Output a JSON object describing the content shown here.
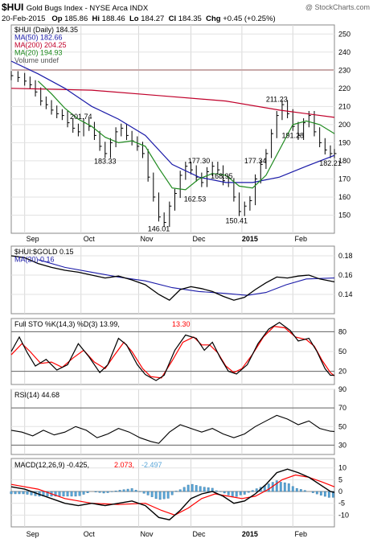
{
  "header": {
    "symbol": "$HUI",
    "name": "Gold Bugs Index - NYSE Arca INDX",
    "watermark": "@ StockCharts.com",
    "date": "20-Feb-2015",
    "op_label": "Op",
    "op": "185.86",
    "hi_label": "Hi",
    "hi": "188.46",
    "lo_label": "Lo",
    "lo": "184.27",
    "cl_label": "Cl",
    "cl": "184.35",
    "chg_label": "Chg",
    "chg": "+0.45 (+0.25%)"
  },
  "months": [
    "Sep",
    "Oct",
    "Nov",
    "Dec",
    "2015",
    "Feb"
  ],
  "colors": {
    "price": "#000000",
    "ma50": "#1a1aa8",
    "ma200": "#c0002a",
    "ma20": "#1f8a1f",
    "sto_k": "#000000",
    "sto_d": "#ff0000",
    "macd": "#000000",
    "signal": "#ff0000",
    "hist": "#5aa6d8",
    "positive": "#2a9a2a",
    "vol": "#c9a9a9"
  },
  "chart_data": [
    {
      "type": "line",
      "legend": [
        "$HUI (Daily) 184.35",
        "MA(50) 182.66",
        "MA(200) 204.25",
        "MA(20) 194.93",
        "Volume undef"
      ],
      "ylim": [
        140,
        255
      ],
      "yticks": [
        "150",
        "160",
        "170",
        "180",
        "190",
        "200",
        "210",
        "220",
        "230",
        "240",
        "250"
      ],
      "annotations": [
        {
          "text": "201.74",
          "x": 52,
          "y": 201.74
        },
        {
          "text": "183.33",
          "x": 70,
          "y": 183.33
        },
        {
          "text": "146.01",
          "x": 110,
          "y": 146.01
        },
        {
          "text": "177.30",
          "x": 140,
          "y": 177.3
        },
        {
          "text": "162.53",
          "x": 137,
          "y": 162.53
        },
        {
          "text": "168.95",
          "x": 157,
          "y": 168.95
        },
        {
          "text": "150.41",
          "x": 168,
          "y": 150.41
        },
        {
          "text": "177.34",
          "x": 182,
          "y": 177.34
        },
        {
          "text": "211.23",
          "x": 198,
          "y": 211.23
        },
        {
          "text": "191.28",
          "x": 210,
          "y": 191.28
        },
        {
          "text": "182.21",
          "x": 238,
          "y": 182.21
        }
      ],
      "price": [
        [
          0,
          227
        ],
        [
          5,
          226
        ],
        [
          10,
          224
        ],
        [
          14,
          222
        ],
        [
          18,
          218
        ],
        [
          22,
          213
        ],
        [
          26,
          211
        ],
        [
          30,
          208
        ],
        [
          34,
          206
        ],
        [
          38,
          205
        ],
        [
          42,
          201
        ],
        [
          46,
          198
        ],
        [
          50,
          196
        ],
        [
          54,
          201
        ],
        [
          58,
          199
        ],
        [
          62,
          194
        ],
        [
          66,
          188
        ],
        [
          70,
          184
        ],
        [
          74,
          190
        ],
        [
          78,
          196
        ],
        [
          82,
          198
        ],
        [
          86,
          194
        ],
        [
          90,
          191
        ],
        [
          94,
          188
        ],
        [
          98,
          184
        ],
        [
          102,
          171
        ],
        [
          106,
          160
        ],
        [
          110,
          149
        ],
        [
          114,
          146
        ],
        [
          118,
          155
        ],
        [
          122,
          162
        ],
        [
          126,
          172
        ],
        [
          130,
          177
        ],
        [
          134,
          175
        ],
        [
          138,
          171
        ],
        [
          142,
          168
        ],
        [
          146,
          174
        ],
        [
          150,
          177
        ],
        [
          154,
          175
        ],
        [
          158,
          169
        ],
        [
          162,
          168
        ],
        [
          166,
          160
        ],
        [
          170,
          152
        ],
        [
          174,
          155
        ],
        [
          178,
          158
        ],
        [
          182,
          170
        ],
        [
          186,
          178
        ],
        [
          190,
          184
        ],
        [
          194,
          195
        ],
        [
          198,
          205
        ],
        [
          202,
          211
        ],
        [
          206,
          206
        ],
        [
          210,
          199
        ],
        [
          214,
          194
        ],
        [
          218,
          201
        ],
        [
          222,
          205
        ],
        [
          226,
          196
        ],
        [
          230,
          190
        ],
        [
          234,
          186
        ],
        [
          238,
          184
        ],
        [
          241,
          184
        ]
      ],
      "ma50": [
        [
          0,
          235
        ],
        [
          20,
          228
        ],
        [
          40,
          220
        ],
        [
          60,
          210
        ],
        [
          80,
          203
        ],
        [
          100,
          194
        ],
        [
          120,
          178
        ],
        [
          140,
          171
        ],
        [
          160,
          168
        ],
        [
          180,
          168
        ],
        [
          200,
          171
        ],
        [
          220,
          177
        ],
        [
          241,
          183
        ]
      ],
      "ma200": [
        [
          0,
          220
        ],
        [
          60,
          219
        ],
        [
          110,
          216
        ],
        [
          160,
          213
        ],
        [
          200,
          208
        ],
        [
          241,
          204
        ]
      ],
      "ma20": [
        [
          20,
          224
        ],
        [
          30,
          217
        ],
        [
          40,
          209
        ],
        [
          50,
          203
        ],
        [
          60,
          199
        ],
        [
          70,
          193
        ],
        [
          80,
          190
        ],
        [
          90,
          191
        ],
        [
          100,
          188
        ],
        [
          110,
          176
        ],
        [
          120,
          165
        ],
        [
          130,
          164
        ],
        [
          140,
          170
        ],
        [
          150,
          173
        ],
        [
          160,
          172
        ],
        [
          170,
          166
        ],
        [
          180,
          165
        ],
        [
          190,
          172
        ],
        [
          200,
          186
        ],
        [
          210,
          200
        ],
        [
          220,
          202
        ],
        [
          230,
          200
        ],
        [
          241,
          195
        ]
      ]
    },
    {
      "type": "line",
      "legend": [
        "$HUI:$GOLD 0.15",
        "MA(20) 0.16"
      ],
      "ylim": [
        0.12,
        0.19
      ],
      "yticks": [
        "0.14",
        "0.16",
        "0.18"
      ],
      "ratio": [
        [
          0,
          0.18
        ],
        [
          10,
          0.178
        ],
        [
          20,
          0.172
        ],
        [
          30,
          0.168
        ],
        [
          40,
          0.165
        ],
        [
          50,
          0.163
        ],
        [
          60,
          0.16
        ],
        [
          70,
          0.157
        ],
        [
          80,
          0.159
        ],
        [
          90,
          0.155
        ],
        [
          100,
          0.15
        ],
        [
          110,
          0.14
        ],
        [
          118,
          0.134
        ],
        [
          126,
          0.145
        ],
        [
          134,
          0.148
        ],
        [
          142,
          0.146
        ],
        [
          150,
          0.143
        ],
        [
          158,
          0.138
        ],
        [
          166,
          0.134
        ],
        [
          174,
          0.137
        ],
        [
          182,
          0.145
        ],
        [
          190,
          0.152
        ],
        [
          198,
          0.158
        ],
        [
          206,
          0.157
        ],
        [
          214,
          0.159
        ],
        [
          222,
          0.16
        ],
        [
          230,
          0.156
        ],
        [
          241,
          0.153
        ]
      ],
      "ma20": [
        [
          20,
          0.176
        ],
        [
          40,
          0.168
        ],
        [
          60,
          0.163
        ],
        [
          80,
          0.158
        ],
        [
          100,
          0.154
        ],
        [
          120,
          0.147
        ],
        [
          140,
          0.143
        ],
        [
          160,
          0.141
        ],
        [
          176,
          0.139
        ],
        [
          190,
          0.142
        ],
        [
          205,
          0.15
        ],
        [
          220,
          0.156
        ],
        [
          241,
          0.157
        ]
      ]
    },
    {
      "type": "line",
      "legend": [
        "Full STO %K(14,3) %D(3) 13.99,",
        "13.30"
      ],
      "ylim": [
        0,
        100
      ],
      "yticks": [
        "20",
        "50",
        "80"
      ],
      "k": [
        [
          0,
          50
        ],
        [
          6,
          72
        ],
        [
          12,
          48
        ],
        [
          18,
          28
        ],
        [
          26,
          38
        ],
        [
          34,
          22
        ],
        [
          42,
          30
        ],
        [
          50,
          62
        ],
        [
          58,
          42
        ],
        [
          66,
          18
        ],
        [
          72,
          30
        ],
        [
          80,
          70
        ],
        [
          86,
          60
        ],
        [
          94,
          30
        ],
        [
          100,
          15
        ],
        [
          108,
          6
        ],
        [
          114,
          14
        ],
        [
          122,
          52
        ],
        [
          130,
          75
        ],
        [
          138,
          70
        ],
        [
          144,
          52
        ],
        [
          150,
          64
        ],
        [
          156,
          40
        ],
        [
          162,
          20
        ],
        [
          168,
          16
        ],
        [
          176,
          30
        ],
        [
          184,
          62
        ],
        [
          192,
          84
        ],
        [
          200,
          94
        ],
        [
          208,
          82
        ],
        [
          214,
          66
        ],
        [
          222,
          70
        ],
        [
          228,
          50
        ],
        [
          234,
          24
        ],
        [
          238,
          14
        ],
        [
          241,
          14
        ]
      ],
      "d": [
        [
          0,
          45
        ],
        [
          8,
          62
        ],
        [
          14,
          50
        ],
        [
          22,
          32
        ],
        [
          30,
          34
        ],
        [
          38,
          26
        ],
        [
          46,
          40
        ],
        [
          54,
          52
        ],
        [
          62,
          34
        ],
        [
          70,
          24
        ],
        [
          76,
          42
        ],
        [
          84,
          64
        ],
        [
          90,
          50
        ],
        [
          98,
          24
        ],
        [
          104,
          12
        ],
        [
          112,
          10
        ],
        [
          120,
          36
        ],
        [
          128,
          64
        ],
        [
          136,
          72
        ],
        [
          142,
          60
        ],
        [
          148,
          60
        ],
        [
          154,
          48
        ],
        [
          160,
          28
        ],
        [
          166,
          18
        ],
        [
          172,
          24
        ],
        [
          180,
          46
        ],
        [
          188,
          72
        ],
        [
          196,
          88
        ],
        [
          204,
          86
        ],
        [
          212,
          72
        ],
        [
          220,
          68
        ],
        [
          226,
          58
        ],
        [
          232,
          36
        ],
        [
          238,
          18
        ],
        [
          241,
          13
        ]
      ]
    },
    {
      "type": "line",
      "legend": [
        "RSI(14) 44.68"
      ],
      "ylim": [
        20,
        90
      ],
      "yticks": [
        "30",
        "50",
        "70",
        "90"
      ],
      "rsi": [
        [
          0,
          46
        ],
        [
          8,
          44
        ],
        [
          16,
          40
        ],
        [
          24,
          46
        ],
        [
          32,
          41
        ],
        [
          40,
          44
        ],
        [
          48,
          50
        ],
        [
          56,
          46
        ],
        [
          64,
          38
        ],
        [
          72,
          42
        ],
        [
          80,
          48
        ],
        [
          88,
          44
        ],
        [
          96,
          38
        ],
        [
          104,
          34
        ],
        [
          110,
          32
        ],
        [
          118,
          44
        ],
        [
          126,
          52
        ],
        [
          134,
          48
        ],
        [
          142,
          44
        ],
        [
          150,
          48
        ],
        [
          158,
          42
        ],
        [
          166,
          38
        ],
        [
          174,
          42
        ],
        [
          182,
          50
        ],
        [
          190,
          56
        ],
        [
          198,
          62
        ],
        [
          206,
          58
        ],
        [
          214,
          52
        ],
        [
          222,
          56
        ],
        [
          230,
          48
        ],
        [
          238,
          45
        ],
        [
          241,
          44.7
        ]
      ]
    },
    {
      "type": "line",
      "legend": [
        "MACD(12,26,9) -0.425,",
        "2.073,",
        "-2.497"
      ],
      "ylim": [
        -15,
        14
      ],
      "yticks": [
        "-10",
        "-5",
        "0",
        "5",
        "10"
      ],
      "macd": [
        [
          0,
          2
        ],
        [
          10,
          1
        ],
        [
          20,
          -1
        ],
        [
          30,
          -3
        ],
        [
          40,
          -5
        ],
        [
          50,
          -6
        ],
        [
          60,
          -5
        ],
        [
          70,
          -6
        ],
        [
          80,
          -5
        ],
        [
          90,
          -4
        ],
        [
          100,
          -6
        ],
        [
          110,
          -11
        ],
        [
          118,
          -12
        ],
        [
          126,
          -8
        ],
        [
          134,
          -3
        ],
        [
          142,
          -1
        ],
        [
          150,
          0
        ],
        [
          158,
          -2
        ],
        [
          166,
          -5
        ],
        [
          174,
          -4
        ],
        [
          182,
          -1
        ],
        [
          190,
          3
        ],
        [
          198,
          8
        ],
        [
          206,
          9.5
        ],
        [
          214,
          8
        ],
        [
          222,
          6
        ],
        [
          230,
          3
        ],
        [
          238,
          0
        ],
        [
          241,
          -0.4
        ]
      ],
      "signal": [
        [
          0,
          3
        ],
        [
          20,
          1
        ],
        [
          40,
          -3
        ],
        [
          60,
          -5
        ],
        [
          80,
          -5.5
        ],
        [
          100,
          -5
        ],
        [
          112,
          -8
        ],
        [
          122,
          -10
        ],
        [
          132,
          -7
        ],
        [
          142,
          -3
        ],
        [
          152,
          -1
        ],
        [
          162,
          -2
        ],
        [
          172,
          -3
        ],
        [
          182,
          -2
        ],
        [
          192,
          1
        ],
        [
          202,
          5
        ],
        [
          212,
          7
        ],
        [
          222,
          6
        ],
        [
          232,
          4
        ],
        [
          241,
          2
        ]
      ],
      "hist_step": 3
    }
  ]
}
